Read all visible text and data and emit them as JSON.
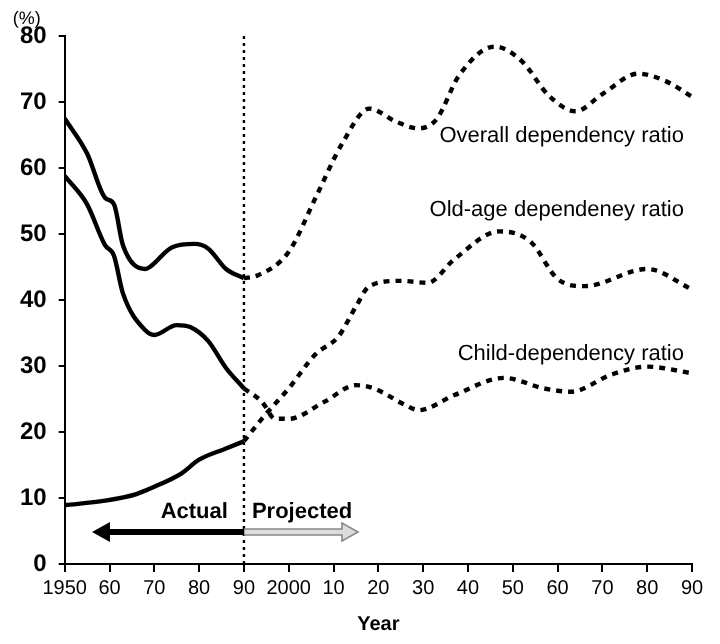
{
  "chart_data": {
    "type": "line",
    "xlabel": "Year",
    "ylabel": "(%)",
    "xlim": [
      1950,
      2090
    ],
    "xticks": [
      1950,
      {
        "value": 1960,
        "label": "60"
      },
      {
        "value": 1970,
        "label": "70"
      },
      {
        "value": 1980,
        "label": "80"
      },
      {
        "value": 1990,
        "label": "90"
      },
      2000,
      {
        "value": 2010,
        "label": "10"
      },
      {
        "value": 2020,
        "label": "20"
      },
      {
        "value": 2030,
        "label": "30"
      },
      {
        "value": 2040,
        "label": "40"
      },
      {
        "value": 2050,
        "label": "50"
      },
      {
        "value": 2060,
        "label": "60"
      },
      {
        "value": 2070,
        "label": "70"
      },
      {
        "value": 2080,
        "label": "80"
      },
      {
        "value": 2090,
        "label": "90"
      }
    ],
    "ylim": [
      0,
      80
    ],
    "yticks": [
      0,
      10,
      20,
      30,
      40,
      50,
      60,
      70,
      80
    ],
    "grid": false,
    "legend": false,
    "marker": "none",
    "series": [
      {
        "color": "#000000",
        "line_style": "solid",
        "x": [
          1950,
          1955,
          1959,
          1961,
          1963,
          1968,
          1969,
          1974,
          1979,
          1982,
          1986,
          1990
        ],
        "values": [
          67.5,
          62.2,
          55.5,
          54.5,
          48.3,
          44.7,
          45,
          48,
          48.5,
          47.8,
          44.7,
          43.3
        ]
      },
      {
        "color": "#000000",
        "line_style": "solid",
        "x": [
          1950,
          1955,
          1959,
          1961,
          1963,
          1968,
          1970,
          1975,
          1978,
          1982,
          1986,
          1990
        ],
        "values": [
          58.8,
          54.5,
          48.3,
          46.7,
          41,
          35.4,
          34.7,
          36.2,
          35.9,
          33.8,
          29.7,
          26.6
        ]
      },
      {
        "color": "#000000",
        "line_style": "solid",
        "x": [
          1950,
          1959,
          1966,
          1970,
          1976,
          1980,
          1986,
          1990
        ],
        "values": [
          8.9,
          9.6,
          10.6,
          11.7,
          13.7,
          15.8,
          17.5,
          18.6
        ]
      },
      {
        "name": "Overall dependency ratio",
        "color": "#000000",
        "line_style": "dotted",
        "x": [
          1990,
          1993,
          2000,
          2006,
          2012,
          2018,
          2024,
          2029,
          2033,
          2038,
          2046,
          2052,
          2058,
          2064,
          2070,
          2078,
          2084,
          2090
        ],
        "values": [
          43.3,
          43.7,
          47.3,
          55.5,
          63.8,
          69,
          67,
          66,
          67.4,
          74,
          78.4,
          76.2,
          71,
          68.6,
          71.2,
          74.3,
          73.2,
          70.8
        ]
      },
      {
        "name": "Child-dependency ratio",
        "color": "#000000",
        "line_style": "dotted",
        "x": [
          1990,
          1994,
          1997,
          2000,
          2008,
          2015,
          2019,
          2026,
          2029,
          2037,
          2048,
          2057,
          2063,
          2072,
          2080,
          2090
        ],
        "values": [
          26.6,
          24.6,
          22,
          22,
          24.6,
          27.1,
          26.6,
          24.1,
          23.3,
          25.6,
          28.2,
          26.6,
          26.1,
          28.7,
          29.9,
          28.9
        ]
      },
      {
        "name": "Old-age dependeney ratio",
        "color": "#000000",
        "line_style": "dotted",
        "x": [
          1990,
          1994,
          2000,
          2006,
          2011,
          2015,
          2018,
          2025,
          2031,
          2037,
          2047,
          2054,
          2060,
          2066,
          2080,
          2090
        ],
        "values": [
          18.6,
          22,
          26.6,
          31.8,
          34.4,
          39,
          42.1,
          42.9,
          42.6,
          46.2,
          50.4,
          48.8,
          43.2,
          42.1,
          44.7,
          41.6
        ]
      }
    ],
    "ref_lines": [
      {
        "axis": "x",
        "value": 1990,
        "line_style": "dotted",
        "color": "#000000"
      }
    ],
    "annotations": [
      "Actual",
      "Projected"
    ]
  }
}
